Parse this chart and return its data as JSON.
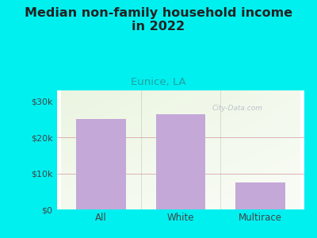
{
  "title": "Median non-family household income\nin 2022",
  "subtitle": "Eunice, LA",
  "categories": [
    "All",
    "White",
    "Multirace"
  ],
  "values": [
    25000,
    26500,
    7500
  ],
  "bar_color": "#c4a8d8",
  "outer_bg": "#00f0f0",
  "ylabel_ticks": [
    0,
    10000,
    20000,
    30000
  ],
  "ylabel_labels": [
    "$0",
    "$10k",
    "$20k",
    "$30k"
  ],
  "ylim": [
    0,
    33000
  ],
  "title_fontsize": 11.5,
  "subtitle_fontsize": 9.5,
  "subtitle_color": "#20a0a0",
  "tick_color": "#444444",
  "grid_color_10k": "#d4a0a8",
  "grid_color_20k": "#d4a0a8",
  "watermark": "City-Data.com"
}
